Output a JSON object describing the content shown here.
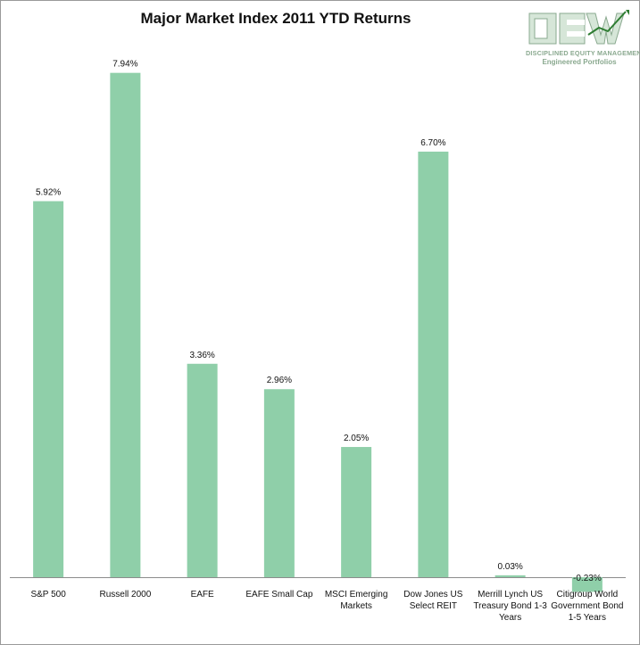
{
  "chart_data": {
    "type": "bar",
    "title": "Major Market Index 2011 YTD Returns",
    "categories": [
      "S&P 500",
      "Russell 2000",
      "EAFE",
      "EAFE Small Cap",
      "MSCI Emerging Markets",
      "Dow Jones US Select REIT",
      "Merrill Lynch US Treasury Bond 1-3 Years",
      "Citigroup World Government Bond 1-5 Years"
    ],
    "category_lines": [
      [
        "S&P 500"
      ],
      [
        "Russell 2000"
      ],
      [
        "EAFE"
      ],
      [
        "EAFE Small Cap"
      ],
      [
        "MSCI Emerging",
        "Markets"
      ],
      [
        "Dow Jones US",
        "Select REIT"
      ],
      [
        "Merrill Lynch US",
        "Treasury Bond 1-3",
        "Years"
      ],
      [
        "Citigroup World",
        "Government Bond",
        "1-5 Years"
      ]
    ],
    "values": [
      5.92,
      7.94,
      3.36,
      2.96,
      2.05,
      6.7,
      0.03,
      -0.23
    ],
    "value_labels": [
      "5.92%",
      "7.94%",
      "3.36%",
      "2.96%",
      "2.05%",
      "6.70%",
      "0.03%",
      "-0.23%"
    ],
    "ylim": [
      -0.5,
      8.5
    ],
    "grid": false,
    "bar_color": "#8fcfa9"
  },
  "logo": {
    "mark": "DEW",
    "line1": "DISCIPLINED EQUITY MANAGEMENT, INC.",
    "line2": "Engineered Portfolios",
    "color": "#8aa98f"
  }
}
